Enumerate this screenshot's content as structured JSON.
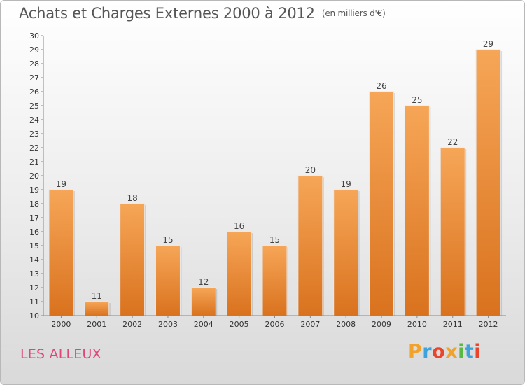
{
  "title": "Achats et Charges Externes 2000 à 2012",
  "unit_label": "(en milliers d'€)",
  "place_label": "LES ALLEUX",
  "logo": {
    "letters": [
      "P",
      "r",
      "o",
      "x",
      "i",
      "t",
      "i"
    ],
    "colors": [
      "#f0a22a",
      "#3ea3dd",
      "#e8452c",
      "#f0a22a",
      "#59b942",
      "#3ea3dd",
      "#e8452c"
    ]
  },
  "colors": {
    "bar_top": "#f6a657",
    "bar_bottom": "#d9721e",
    "title": "#555555",
    "place": "#e0457b"
  },
  "chart_data": {
    "type": "bar",
    "categories": [
      "2000",
      "2001",
      "2002",
      "2003",
      "2004",
      "2005",
      "2006",
      "2007",
      "2008",
      "2009",
      "2010",
      "2011",
      "2012"
    ],
    "values": [
      19,
      11,
      18,
      15,
      12,
      16,
      15,
      20,
      19,
      26,
      25,
      22,
      29
    ],
    "ylim": [
      10,
      30
    ],
    "yticks": [
      10,
      11,
      12,
      13,
      14,
      15,
      16,
      17,
      18,
      19,
      20,
      21,
      22,
      23,
      24,
      25,
      26,
      27,
      28,
      29,
      30
    ],
    "grid": false,
    "data_labels": true
  }
}
